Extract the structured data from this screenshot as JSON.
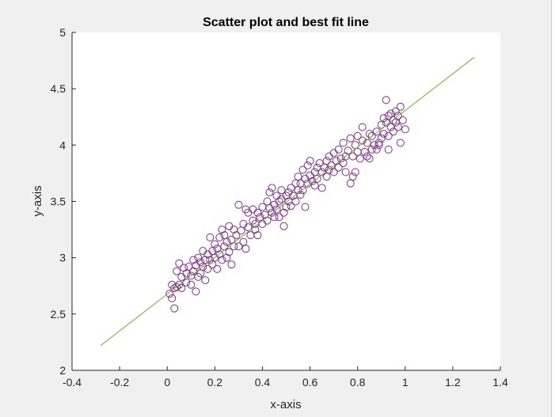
{
  "chart_data": {
    "type": "scatter",
    "title": "Scatter plot and best fit line",
    "xlabel": "x-axis",
    "ylabel": "y-axis",
    "xlim": [
      -0.4,
      1.4
    ],
    "ylim": [
      2,
      5
    ],
    "xticks": [
      "-0.4",
      "-0.2",
      "0",
      "0.2",
      "0.4",
      "0.6",
      "0.8",
      "1",
      "1.2",
      "1.4"
    ],
    "yticks": [
      "2",
      "2.5",
      "3",
      "3.5",
      "4",
      "4.5",
      "5"
    ],
    "grid": false,
    "series": [
      {
        "type": "scatter",
        "marker": "open-circle",
        "color": "#7e2f8e",
        "points": [
          [
            0.01,
            2.68
          ],
          [
            0.02,
            2.64
          ],
          [
            0.02,
            2.76
          ],
          [
            0.03,
            2.55
          ],
          [
            0.03,
            2.73
          ],
          [
            0.04,
            2.74
          ],
          [
            0.04,
            2.88
          ],
          [
            0.05,
            2.76
          ],
          [
            0.05,
            2.95
          ],
          [
            0.06,
            2.83
          ],
          [
            0.06,
            2.73
          ],
          [
            0.07,
            2.91
          ],
          [
            0.08,
            2.86
          ],
          [
            0.08,
            2.78
          ],
          [
            0.09,
            2.92
          ],
          [
            0.1,
            2.84
          ],
          [
            0.1,
            2.76
          ],
          [
            0.11,
            2.98
          ],
          [
            0.11,
            2.88
          ],
          [
            0.12,
            2.7
          ],
          [
            0.12,
            2.93
          ],
          [
            0.13,
            3.0
          ],
          [
            0.13,
            2.83
          ],
          [
            0.14,
            2.96
          ],
          [
            0.14,
            2.86
          ],
          [
            0.15,
            3.06
          ],
          [
            0.15,
            2.92
          ],
          [
            0.16,
            2.98
          ],
          [
            0.16,
            2.8
          ],
          [
            0.17,
            3.03
          ],
          [
            0.17,
            2.9
          ],
          [
            0.18,
            3.18
          ],
          [
            0.18,
            2.98
          ],
          [
            0.19,
            3.06
          ],
          [
            0.19,
            2.94
          ],
          [
            0.2,
            3.12
          ],
          [
            0.2,
            3.0
          ],
          [
            0.21,
            2.9
          ],
          [
            0.21,
            3.08
          ],
          [
            0.22,
            3.18
          ],
          [
            0.22,
            3.03
          ],
          [
            0.23,
            3.25
          ],
          [
            0.23,
            2.98
          ],
          [
            0.24,
            3.1
          ],
          [
            0.24,
            3.2
          ],
          [
            0.25,
            3.0
          ],
          [
            0.25,
            3.14
          ],
          [
            0.26,
            3.28
          ],
          [
            0.26,
            3.05
          ],
          [
            0.27,
            3.16
          ],
          [
            0.27,
            2.94
          ],
          [
            0.28,
            3.25
          ],
          [
            0.28,
            3.1
          ],
          [
            0.29,
            3.2
          ],
          [
            0.3,
            3.47
          ],
          [
            0.3,
            3.1
          ],
          [
            0.31,
            3.24
          ],
          [
            0.32,
            3.3
          ],
          [
            0.32,
            3.14
          ],
          [
            0.33,
            3.43
          ],
          [
            0.33,
            3.08
          ],
          [
            0.34,
            3.4
          ],
          [
            0.34,
            3.27
          ],
          [
            0.35,
            3.2
          ],
          [
            0.36,
            3.33
          ],
          [
            0.36,
            3.43
          ],
          [
            0.37,
            3.25
          ],
          [
            0.37,
            3.3
          ],
          [
            0.38,
            3.4
          ],
          [
            0.38,
            3.2
          ],
          [
            0.39,
            3.36
          ],
          [
            0.4,
            3.45
          ],
          [
            0.4,
            3.3
          ],
          [
            0.41,
            3.38
          ],
          [
            0.42,
            3.5
          ],
          [
            0.42,
            3.33
          ],
          [
            0.43,
            3.44
          ],
          [
            0.43,
            3.58
          ],
          [
            0.44,
            3.4
          ],
          [
            0.44,
            3.62
          ],
          [
            0.45,
            3.47
          ],
          [
            0.45,
            3.36
          ],
          [
            0.46,
            3.55
          ],
          [
            0.46,
            3.43
          ],
          [
            0.47,
            3.5
          ],
          [
            0.47,
            3.36
          ],
          [
            0.48,
            3.52
          ],
          [
            0.48,
            3.6
          ],
          [
            0.49,
            3.4
          ],
          [
            0.49,
            3.28
          ],
          [
            0.5,
            3.55
          ],
          [
            0.5,
            3.45
          ],
          [
            0.51,
            3.58
          ],
          [
            0.51,
            3.5
          ],
          [
            0.52,
            3.62
          ],
          [
            0.52,
            3.46
          ],
          [
            0.53,
            3.55
          ],
          [
            0.54,
            3.66
          ],
          [
            0.54,
            3.5
          ],
          [
            0.55,
            3.6
          ],
          [
            0.55,
            3.72
          ],
          [
            0.56,
            3.56
          ],
          [
            0.56,
            3.66
          ],
          [
            0.57,
            3.78
          ],
          [
            0.57,
            3.6
          ],
          [
            0.58,
            3.7
          ],
          [
            0.58,
            3.45
          ],
          [
            0.59,
            3.82
          ],
          [
            0.59,
            3.66
          ],
          [
            0.6,
            3.73
          ],
          [
            0.6,
            3.86
          ],
          [
            0.61,
            3.68
          ],
          [
            0.62,
            3.76
          ],
          [
            0.62,
            3.64
          ],
          [
            0.63,
            3.8
          ],
          [
            0.63,
            3.7
          ],
          [
            0.64,
            3.84
          ],
          [
            0.65,
            3.76
          ],
          [
            0.65,
            3.62
          ],
          [
            0.66,
            3.8
          ],
          [
            0.67,
            3.86
          ],
          [
            0.67,
            3.72
          ],
          [
            0.68,
            3.9
          ],
          [
            0.68,
            3.78
          ],
          [
            0.69,
            3.82
          ],
          [
            0.7,
            3.93
          ],
          [
            0.7,
            3.76
          ],
          [
            0.71,
            3.86
          ],
          [
            0.72,
            3.96
          ],
          [
            0.72,
            3.8
          ],
          [
            0.73,
            3.88
          ],
          [
            0.74,
            4.02
          ],
          [
            0.74,
            3.84
          ],
          [
            0.75,
            3.9
          ],
          [
            0.75,
            3.76
          ],
          [
            0.76,
            3.95
          ],
          [
            0.77,
            3.66
          ],
          [
            0.77,
            4.06
          ],
          [
            0.78,
            3.9
          ],
          [
            0.79,
            4.0
          ],
          [
            0.79,
            3.76
          ],
          [
            0.8,
            3.94
          ],
          [
            0.8,
            4.08
          ],
          [
            0.81,
            3.88
          ],
          [
            0.82,
            4.04
          ],
          [
            0.82,
            4.16
          ],
          [
            0.83,
            3.94
          ],
          [
            0.84,
            4.02
          ],
          [
            0.84,
            3.9
          ],
          [
            0.85,
            4.1
          ],
          [
            0.86,
            3.96
          ],
          [
            0.86,
            4.08
          ],
          [
            0.87,
            4.0
          ],
          [
            0.88,
            4.12
          ],
          [
            0.88,
            3.96
          ],
          [
            0.89,
            4.02
          ],
          [
            0.9,
            4.18
          ],
          [
            0.9,
            4.06
          ],
          [
            0.91,
            4.24
          ],
          [
            0.91,
            4.1
          ],
          [
            0.92,
            4.4
          ],
          [
            0.92,
            4.2
          ],
          [
            0.93,
            4.26
          ],
          [
            0.93,
            4.08
          ],
          [
            0.94,
            4.28
          ],
          [
            0.94,
            4.16
          ],
          [
            0.95,
            4.22
          ],
          [
            0.95,
            4.12
          ],
          [
            0.96,
            4.3
          ],
          [
            0.96,
            4.2
          ],
          [
            0.97,
            4.26
          ],
          [
            0.97,
            4.16
          ],
          [
            0.98,
            4.02
          ],
          [
            0.98,
            4.34
          ],
          [
            0.99,
            4.22
          ],
          [
            1.0,
            4.14
          ],
          [
            0.93,
            3.96
          ],
          [
            0.89,
            4.0
          ],
          [
            0.85,
            3.88
          ],
          [
            0.78,
            3.72
          ]
        ]
      },
      {
        "type": "line",
        "color": "#77ac30",
        "x": [
          -0.28,
          1.29
        ],
        "y": [
          2.22,
          4.78
        ]
      }
    ]
  }
}
